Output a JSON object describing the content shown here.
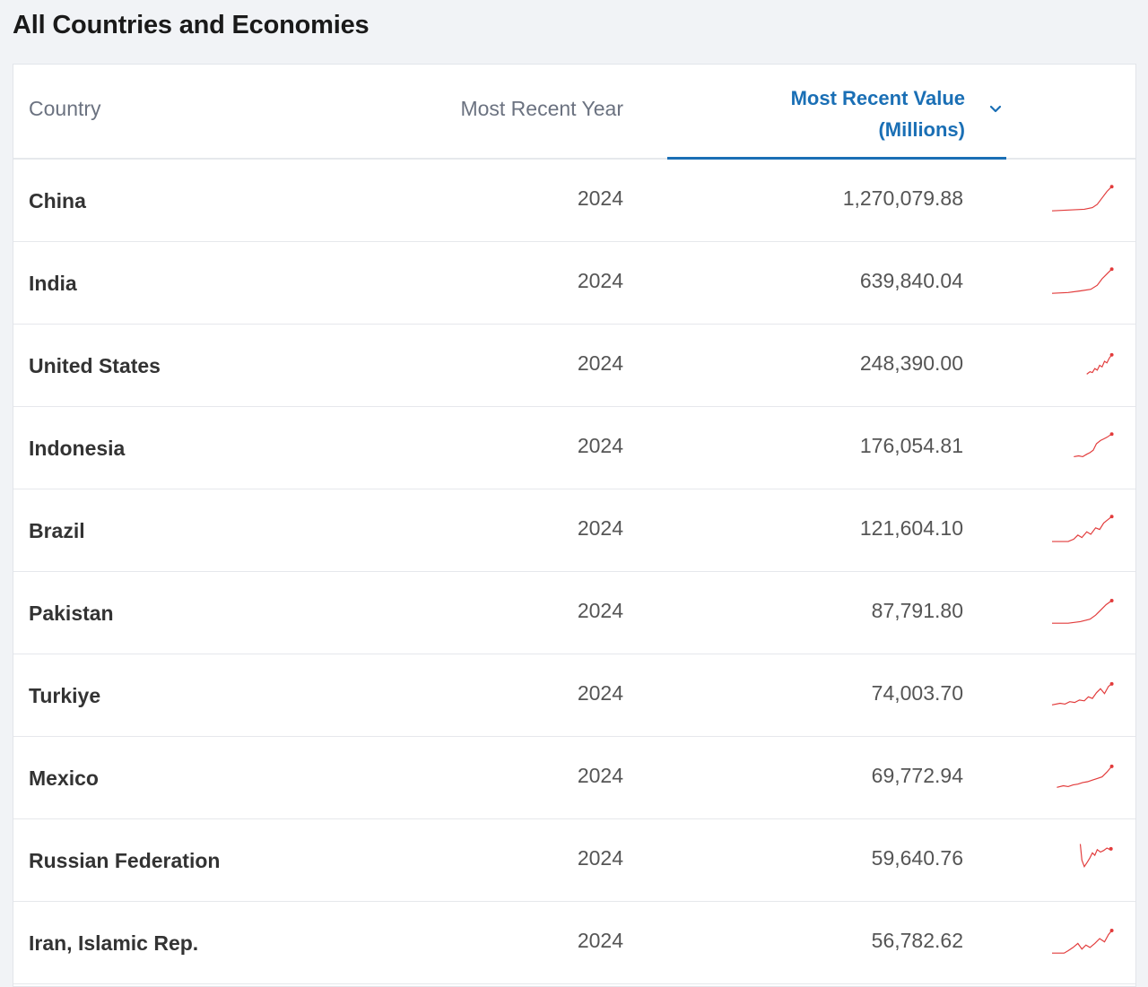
{
  "page": {
    "title": "All Countries and Economies"
  },
  "table": {
    "headers": {
      "country": "Country",
      "year": "Most Recent Year",
      "value_line1": "Most Recent Value",
      "value_line2": "(Millions)"
    },
    "sort_icon": "chevron-down-icon",
    "accent_color": "#1a6fb5",
    "sparkline_color": "#e23b3b",
    "rows": [
      {
        "country": "China",
        "year": "2024",
        "value": "1,270,079.88"
      },
      {
        "country": "India",
        "year": "2024",
        "value": "639,840.04"
      },
      {
        "country": "United States",
        "year": "2024",
        "value": "248,390.00"
      },
      {
        "country": "Indonesia",
        "year": "2024",
        "value": "176,054.81"
      },
      {
        "country": "Brazil",
        "year": "2024",
        "value": "121,604.10"
      },
      {
        "country": "Pakistan",
        "year": "2024",
        "value": "87,791.80"
      },
      {
        "country": "Turkiye",
        "year": "2024",
        "value": "74,003.70"
      },
      {
        "country": "Mexico",
        "year": "2024",
        "value": "69,772.94"
      },
      {
        "country": "Russian Federation",
        "year": "2024",
        "value": "59,640.76"
      },
      {
        "country": "Iran, Islamic Rep.",
        "year": "2024",
        "value": "56,782.62"
      }
    ]
  }
}
